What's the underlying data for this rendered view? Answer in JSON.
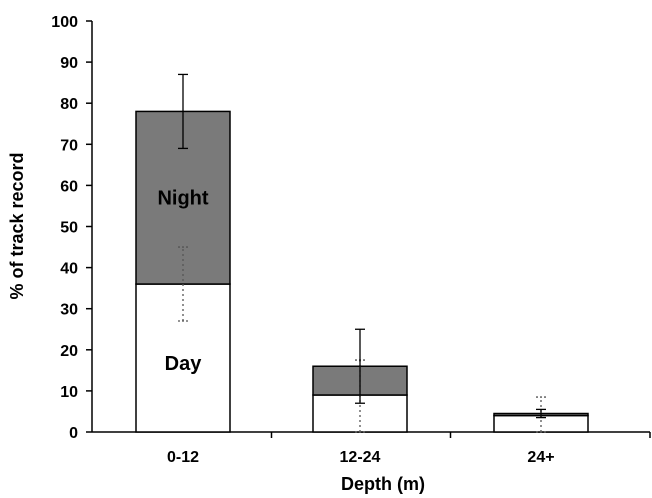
{
  "chart_data": {
    "type": "bar",
    "stacked": true,
    "title": "",
    "xlabel": "Depth (m)",
    "ylabel": "% of track record",
    "ylim": [
      0,
      100
    ],
    "yticks": [
      0,
      10,
      20,
      30,
      40,
      50,
      60,
      70,
      80,
      90,
      100
    ],
    "categories": [
      "0-12",
      "12-24",
      "24+"
    ],
    "grid": false,
    "legend": "none",
    "series": [
      {
        "name": "Day",
        "color": "#ffffff",
        "values": [
          36,
          9,
          4
        ],
        "error_style": "dotted",
        "error_low": [
          27,
          0,
          0
        ],
        "error_high": [
          45,
          17.5,
          8.5
        ]
      },
      {
        "name": "Night",
        "color": "#7a7a7a",
        "values": [
          42,
          7,
          0.5
        ],
        "error_style": "solid",
        "error_low": [
          69,
          7,
          3.5
        ],
        "error_high": [
          87,
          25,
          5.5
        ]
      }
    ]
  }
}
